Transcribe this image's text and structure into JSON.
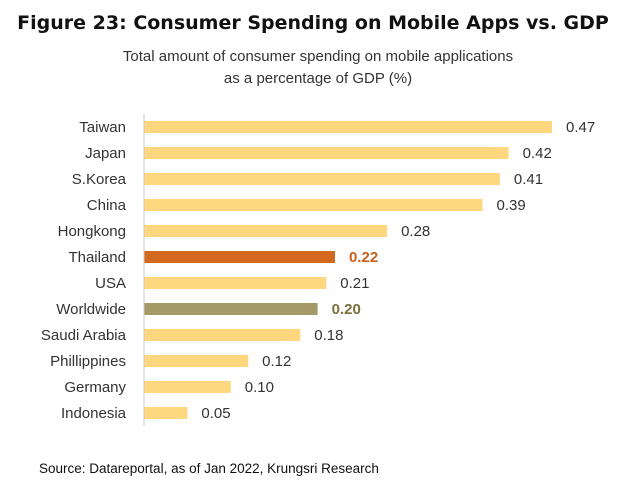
{
  "chart_data": {
    "type": "bar",
    "orientation": "horizontal",
    "title": "Figure 23: Consumer Spending on Mobile Apps vs. GDP",
    "subtitle": [
      "Total  amount  of  consumer  spending  on  mobile  applications",
      "as  a  percentage  of  GDP  (%)"
    ],
    "categories": [
      "Taiwan",
      "Japan",
      "S.Korea",
      "China",
      "Hongkong",
      "Thailand",
      "USA",
      "Worldwide",
      "Saudi Arabia",
      "Phillippines",
      "Germany",
      "Indonesia"
    ],
    "values": [
      0.47,
      0.42,
      0.41,
      0.39,
      0.28,
      0.22,
      0.21,
      0.2,
      0.18,
      0.12,
      0.1,
      0.05
    ],
    "value_labels": [
      "0.47",
      "0.42",
      "0.41",
      "0.39",
      "0.28",
      "0.22",
      "0.21",
      "0.20",
      "0.18",
      "0.12",
      "0.10",
      "0.05"
    ],
    "highlight": {
      "Thailand": "#d2691e",
      "Worldwide": "#a39a67"
    },
    "bar_color": "#ffd77f",
    "label_highlight_colors": {
      "Thailand": "#c8601a",
      "Worldwide": "#7a6f3a"
    },
    "xlim": [
      0,
      0.47
    ],
    "grid": false,
    "legend": "none",
    "source": "Source: Datareportal, as of Jan 2022, Krungsri Research"
  }
}
